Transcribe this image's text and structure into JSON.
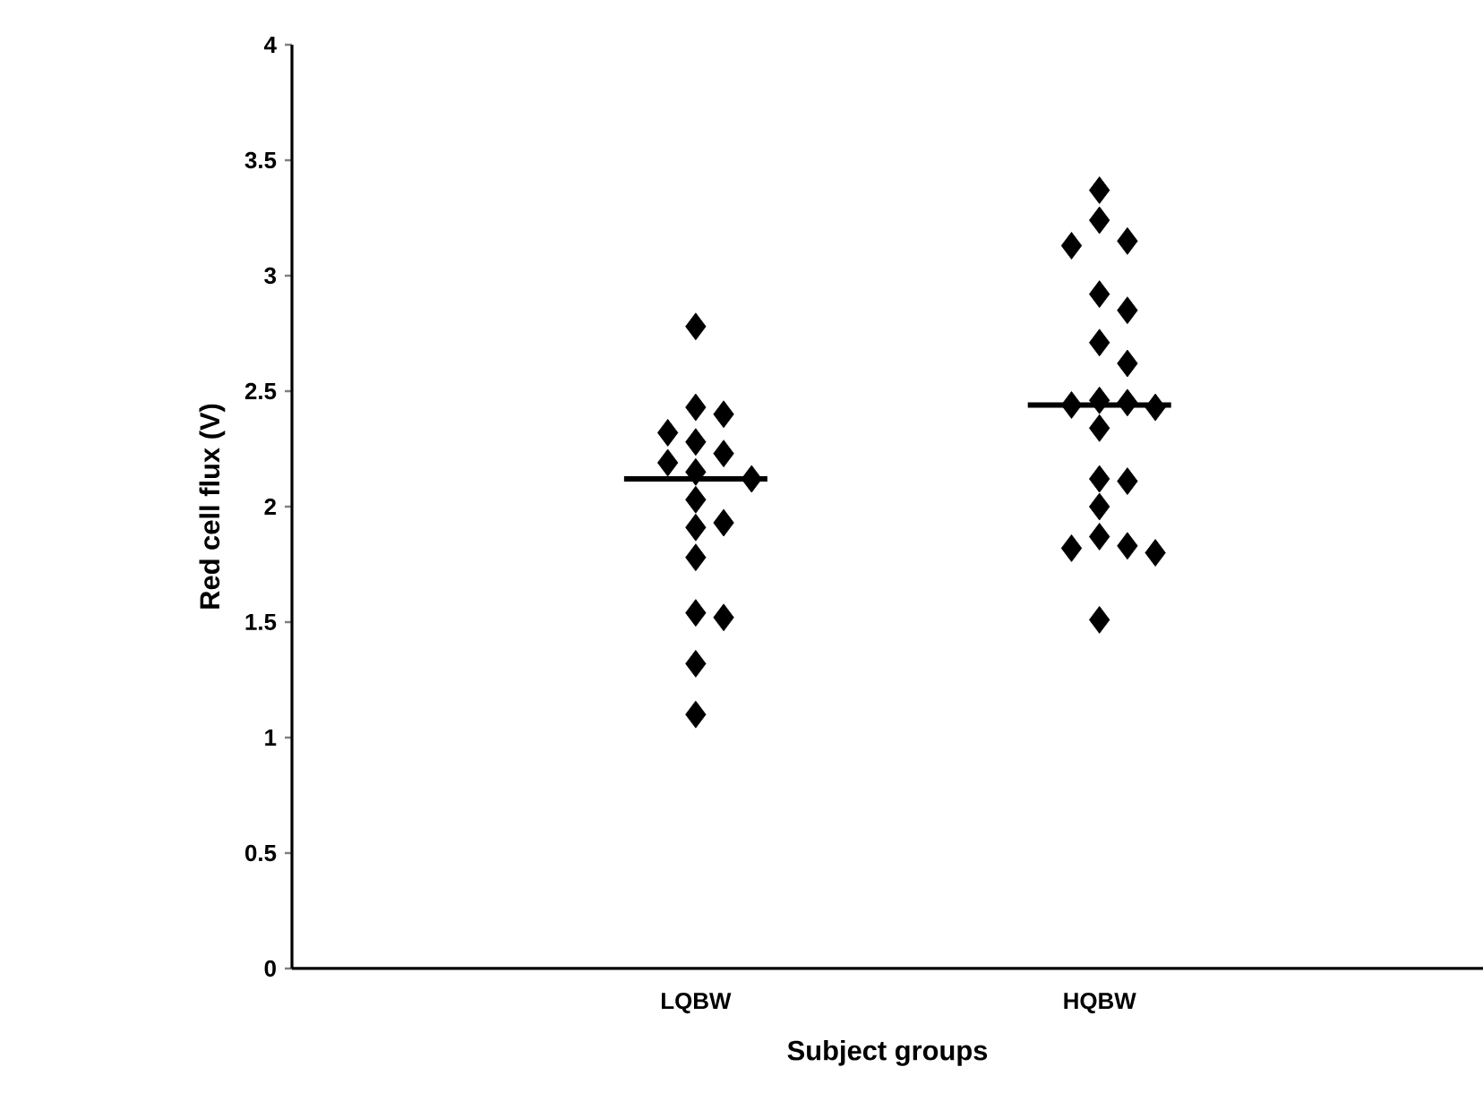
{
  "chart_data": {
    "type": "scatter",
    "xlabel": "Subject groups",
    "ylabel": "Red cell flux (V)",
    "categories": [
      "LQBW",
      "HQBW"
    ],
    "ylim": [
      0,
      4
    ],
    "yticks": [
      0,
      0.5,
      1,
      1.5,
      2,
      2.5,
      3,
      3.5,
      4
    ],
    "series": [
      {
        "marker": "diamond",
        "color": "#000000",
        "x": [
          "LQBW",
          "LQBW",
          "LQBW",
          "LQBW",
          "LQBW",
          "LQBW",
          "LQBW",
          "LQBW",
          "LQBW",
          "LQBW",
          "LQBW",
          "LQBW",
          "LQBW",
          "LQBW",
          "LQBW",
          "LQBW",
          "LQBW"
        ],
        "values": [
          2.78,
          2.43,
          2.4,
          2.32,
          2.28,
          2.23,
          2.19,
          2.15,
          2.12,
          2.03,
          1.93,
          1.91,
          1.78,
          1.54,
          1.52,
          1.32,
          1.1
        ]
      },
      {
        "marker": "diamond",
        "color": "#000000",
        "x": [
          "HQBW",
          "HQBW",
          "HQBW",
          "HQBW",
          "HQBW",
          "HQBW",
          "HQBW",
          "HQBW",
          "HQBW",
          "HQBW",
          "HQBW",
          "HQBW",
          "HQBW",
          "HQBW",
          "HQBW",
          "HQBW",
          "HQBW",
          "HQBW",
          "HQBW",
          "HQBW",
          "HQBW"
        ],
        "values": [
          3.37,
          3.24,
          3.15,
          3.13,
          2.92,
          2.85,
          2.71,
          2.62,
          2.46,
          2.45,
          2.44,
          2.43,
          2.34,
          2.12,
          2.11,
          2.0,
          1.87,
          1.83,
          1.82,
          1.8,
          1.51
        ]
      },
      {
        "type": "box",
        "color": "#000000",
        "boxes": [
          {
            "low": 2.12,
            "q1": 2.12,
            "median": 2.12,
            "q3": 2.12,
            "high": 2.12
          },
          {
            "low": 2.44,
            "q1": 2.44,
            "median": 2.44,
            "q3": 2.44,
            "high": 2.44
          }
        ]
      }
    ]
  }
}
